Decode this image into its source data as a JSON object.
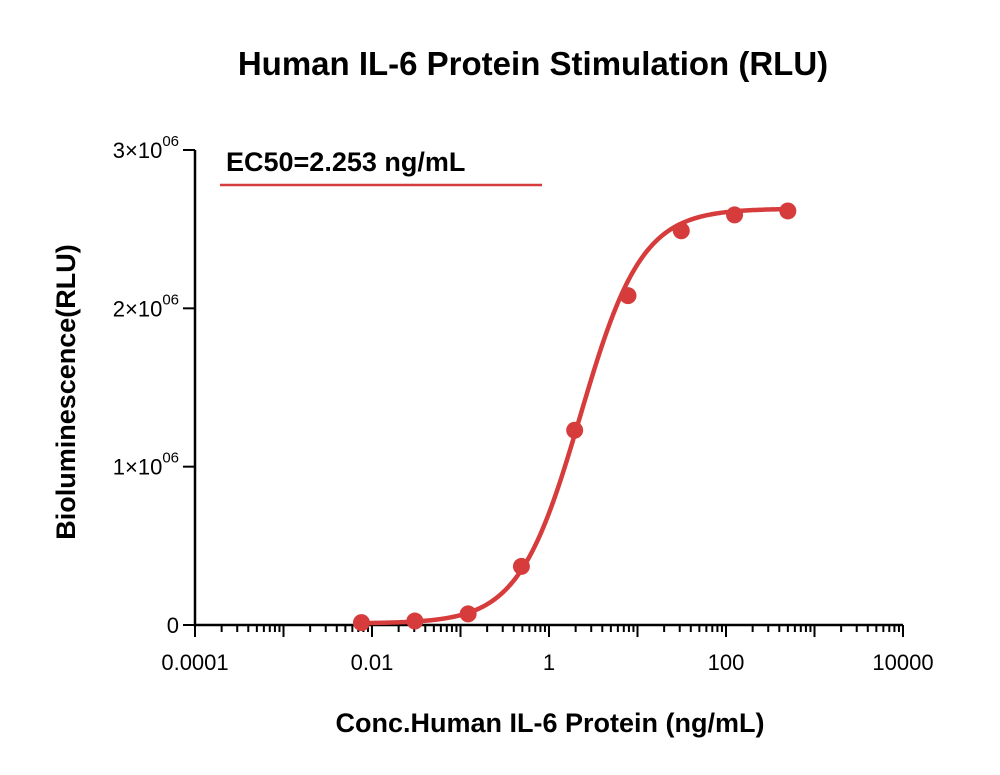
{
  "chart_data": {
    "type": "scatter",
    "title": "Human IL-6 Protein Stimulation (RLU)",
    "xlabel": "Conc.Human IL-6 Protein (ng/mL)",
    "ylabel": "Bioluminescence(RLU)",
    "x_scale": "log",
    "xlim": [
      0.0001,
      10000
    ],
    "ylim": [
      0,
      3000000
    ],
    "x_ticks": [
      {
        "value": 0.0001,
        "label": "0.0001"
      },
      {
        "value": 0.01,
        "label": "0.01"
      },
      {
        "value": 1,
        "label": "1"
      },
      {
        "value": 100,
        "label": "100"
      },
      {
        "value": 10000,
        "label": "10000"
      }
    ],
    "y_ticks": [
      {
        "value": 0,
        "mantissa": "0",
        "exp": ""
      },
      {
        "value": 1000000,
        "mantissa": "1×10",
        "exp": "06"
      },
      {
        "value": 2000000,
        "mantissa": "2×10",
        "exp": "06"
      },
      {
        "value": 3000000,
        "mantissa": "3×10",
        "exp": "06"
      }
    ],
    "annotation": "EC50=2.253 ng/mL",
    "series": [
      {
        "color": "#d63c3c",
        "x": [
          0.0076,
          0.0305,
          0.122,
          0.488,
          1.95,
          7.81,
          31.25,
          125,
          500
        ],
        "y": [
          15000,
          25000,
          70000,
          370000,
          1230000,
          2080000,
          2490000,
          2590000,
          2615000
        ]
      }
    ],
    "fit": {
      "model": "4PL",
      "bottom": 10000,
      "top": 2630000,
      "ec50": 2.253,
      "hill": 1.25
    },
    "grid": false,
    "legend": "none"
  }
}
